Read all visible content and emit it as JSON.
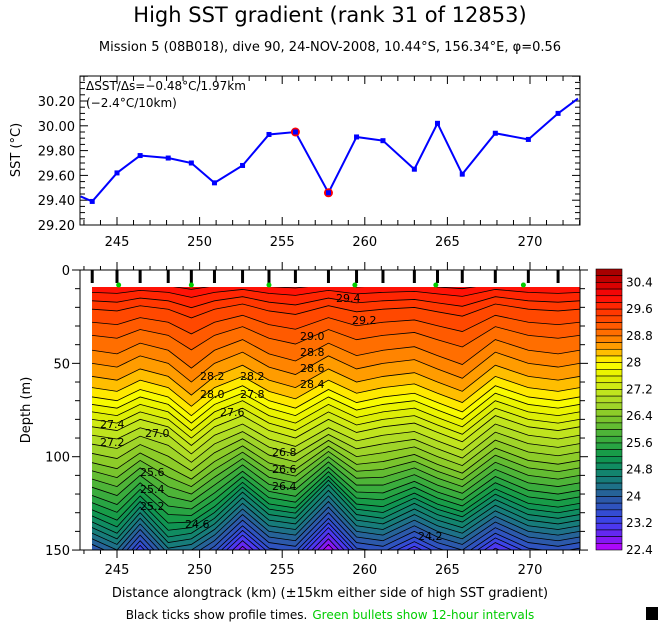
{
  "title": "High SST gradient (rank 31 of 12853)",
  "subtitle": "Mission 5 (08B018), dive 90, 24-NOV-2008, 10.44°S, 156.34°E, φ=0.56",
  "footer": {
    "black_text": "Black ticks show profile times.",
    "green_text": "Green bullets show 12-hour intervals",
    "green_color": "#00cc00"
  },
  "chart_data": [
    {
      "type": "line",
      "ylabel": "SST (°C)",
      "annotation_1": "ΔSST/Δs=−0.48°C/1.97km",
      "annotation_2": "(−2.4°C/10km)",
      "xlim": [
        242.8,
        273.0
      ],
      "ylim": [
        29.2,
        30.4
      ],
      "xticks": [
        "245",
        "250",
        "255",
        "260",
        "265",
        "270"
      ],
      "yticks": [
        "29.20",
        "29.40",
        "29.60",
        "29.80",
        "30.00",
        "30.20"
      ],
      "line_color": "#0000ff",
      "highlight_color": "#ff0000",
      "x": [
        242.8,
        243.5,
        245.0,
        246.4,
        248.1,
        249.5,
        250.9,
        252.6,
        254.2,
        255.8,
        257.8,
        259.5,
        261.1,
        263.0,
        264.4,
        265.9,
        267.9,
        269.9,
        271.7,
        272.9
      ],
      "y": [
        29.43,
        29.39,
        29.62,
        29.76,
        29.74,
        29.7,
        29.54,
        29.68,
        29.93,
        29.95,
        29.46,
        29.91,
        29.88,
        29.65,
        30.02,
        29.61,
        29.94,
        29.89,
        30.1,
        30.22
      ],
      "highlighted_x": [
        255.8,
        257.8
      ]
    },
    {
      "type": "heatmap",
      "subtype": "filled contour",
      "xlabel": "Distance alongtrack (km) (±15km either side of high SST gradient)",
      "ylabel": "Depth (m)",
      "xlim": [
        242.8,
        273.0
      ],
      "ylim": [
        150,
        0
      ],
      "xticks": [
        "245",
        "250",
        "255",
        "260",
        "265",
        "270"
      ],
      "yticks": [
        "0",
        "50",
        "100",
        "150"
      ],
      "contour_interval": 0.2,
      "profile_x": [
        243.5,
        245.0,
        246.4,
        248.1,
        249.5,
        250.9,
        252.6,
        254.2,
        255.8,
        257.8,
        259.5,
        261.1,
        263.0,
        264.4,
        265.9,
        267.9,
        269.9,
        271.7,
        273.0
      ],
      "twelve_hour_x": [
        245.1,
        249.5,
        254.2,
        259.4,
        264.3,
        269.6
      ],
      "contour_labels": [
        "29.4",
        "29.2",
        "29.0",
        "28.8",
        "28.6",
        "28.4",
        "28.2",
        "28.2",
        "28.0",
        "27.8",
        "27.6",
        "27.4",
        "27.2",
        "27.0",
        "26.8",
        "26.6",
        "26.4",
        "25.6",
        "25.4",
        "25.2",
        "24.6",
        "24.2"
      ],
      "colorbar": {
        "tick_labels": [
          "30.4",
          "29.6",
          "28.8",
          "28",
          "27.2",
          "26.4",
          "25.6",
          "24.8",
          "24",
          "23.2",
          "22.4"
        ],
        "range": [
          22.4,
          30.8
        ],
        "palette_stops": [
          [
            30.8,
            "#9a0000"
          ],
          [
            30.4,
            "#cc0000"
          ],
          [
            30.0,
            "#ff0808"
          ],
          [
            29.6,
            "#ff3000"
          ],
          [
            29.2,
            "#ff5000"
          ],
          [
            28.8,
            "#ff7800"
          ],
          [
            28.4,
            "#ffa800"
          ],
          [
            28.0,
            "#ffff00"
          ],
          [
            27.6,
            "#e4f000"
          ],
          [
            27.2,
            "#c8e81a"
          ],
          [
            26.8,
            "#a8d828"
          ],
          [
            26.4,
            "#84c82a"
          ],
          [
            26.0,
            "#58b835"
          ],
          [
            25.6,
            "#30a840"
          ],
          [
            25.2,
            "#10984a"
          ],
          [
            24.8,
            "#108868"
          ],
          [
            24.4,
            "#1a7880"
          ],
          [
            24.0,
            "#2a5ca0"
          ],
          [
            23.6,
            "#3050c8"
          ],
          [
            23.2,
            "#4040f0"
          ],
          [
            22.8,
            "#7020f0"
          ],
          [
            22.4,
            "#c000ff"
          ]
        ]
      }
    }
  ]
}
